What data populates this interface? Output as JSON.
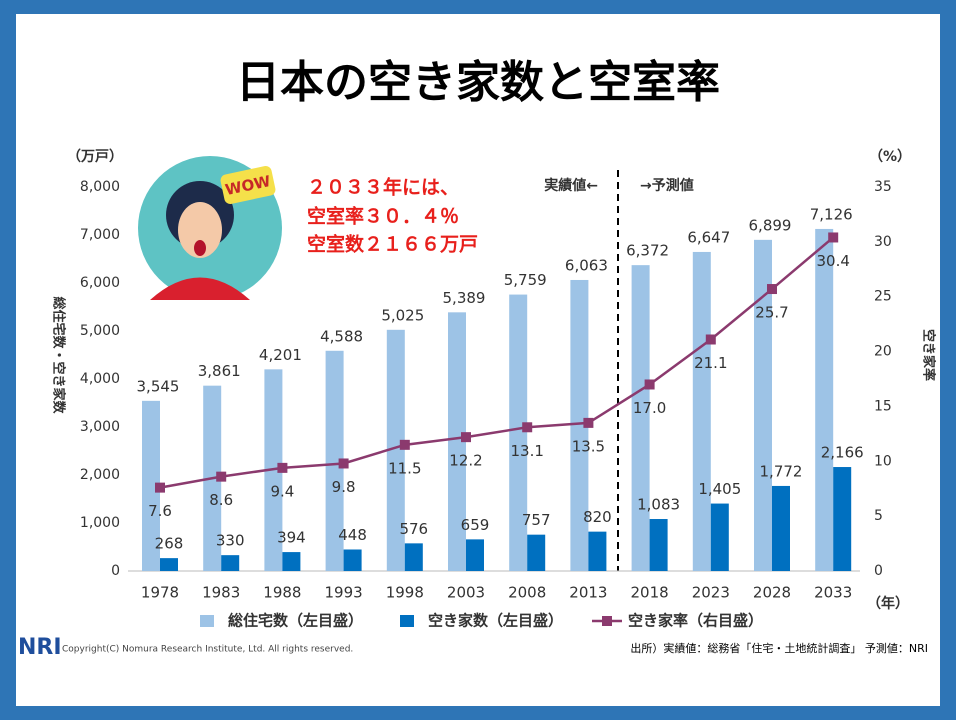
{
  "title": "日本の空き家数と空室率",
  "chart_data": {
    "type": "bar",
    "categories": [
      "1978",
      "1983",
      "1988",
      "1993",
      "1998",
      "2003",
      "2008",
      "2013",
      "2018",
      "2023",
      "2028",
      "2033"
    ],
    "series": [
      {
        "name": "総住宅数（左目盛）",
        "color": "#9dc3e6",
        "values": [
          3545,
          3861,
          4201,
          4588,
          5025,
          5389,
          5759,
          6063,
          6372,
          6647,
          6899,
          7126
        ],
        "value_labels": [
          "3,545",
          "3,861",
          "4,201",
          "4,588",
          "5,025",
          "5,389",
          "5,759",
          "6,063",
          "6,372",
          "6,647",
          "6,899",
          "7,126"
        ]
      },
      {
        "name": "空き家数（左目盛）",
        "color": "#0070c0",
        "values": [
          268,
          330,
          394,
          448,
          576,
          659,
          757,
          820,
          1083,
          1405,
          1772,
          2166
        ],
        "value_labels": [
          "268",
          "330",
          "394",
          "448",
          "576",
          "659",
          "757",
          "820",
          "1,083",
          "1,405",
          "1,772",
          "2,166"
        ]
      },
      {
        "name": "空き家率（右目盛）",
        "type": "line",
        "axis": "y2",
        "color": "#8b3a6e",
        "values": [
          7.6,
          8.6,
          9.4,
          9.8,
          11.5,
          12.2,
          13.1,
          13.5,
          17.0,
          21.1,
          25.7,
          30.4
        ],
        "value_labels": [
          "7.6",
          "8.6",
          "9.4",
          "9.8",
          "11.5",
          "12.2",
          "13.1",
          "13.5",
          "17.0",
          "21.1",
          "25.7",
          "30.4"
        ]
      }
    ],
    "ylim": [
      0,
      8000
    ],
    "yticks": [
      0,
      {
        "value": 1000,
        "label": "1,000"
      },
      {
        "value": 2000,
        "label": "2,000"
      },
      {
        "value": 3000,
        "label": "3,000"
      },
      {
        "value": 4000,
        "label": "4,000"
      },
      {
        "value": 5000,
        "label": "5,000"
      },
      {
        "value": 6000,
        "label": "6,000"
      },
      {
        "value": 7000,
        "label": "7,000"
      },
      {
        "value": 8000,
        "label": "8,000"
      }
    ],
    "y2lim": [
      0,
      35
    ],
    "y2ticks": [
      0,
      5,
      10,
      15,
      20,
      25,
      30,
      35
    ],
    "y_unit": "（万戸）",
    "y2_unit": "（%）",
    "x_unit": "（年）",
    "ylabel": "総住宅数・空き家数",
    "y2label": "空き家率",
    "annotations": [
      "２０３３年には、",
      "空室率３０．４％",
      "空室数２１６６万戸"
    ],
    "actual_label": "実績値←",
    "forecast_label": "→予測値"
  },
  "footer": {
    "logo": "NRI",
    "copyright": "Copyright(C) Nomura Research Institute, Ltd. All rights reserved.",
    "source": "出所）実績値：総務省「住宅・土地統計調査」 予測値：NRI"
  }
}
